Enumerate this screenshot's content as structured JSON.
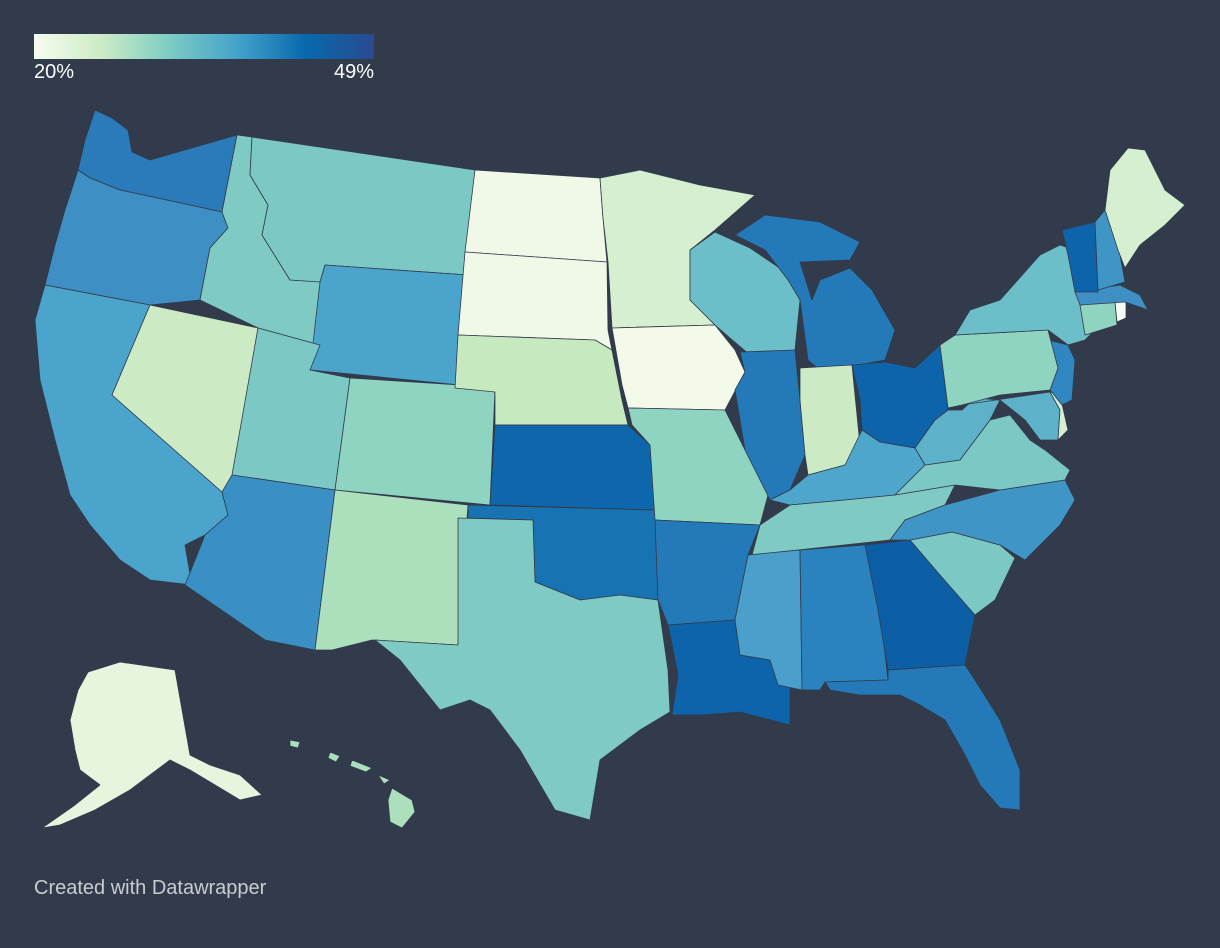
{
  "legend": {
    "min_label": "20%",
    "max_label": "49%",
    "gradient": [
      "#f7fcf0",
      "#ccebc5",
      "#7bccc4",
      "#43a2ca",
      "#0868ac",
      "#2a4a8f"
    ]
  },
  "footer": {
    "credit": "Created with Datawrapper"
  },
  "chart_data": {
    "type": "choropleth",
    "unit": "%",
    "range": [
      20,
      49
    ],
    "states": [
      {
        "name": "Washington",
        "color": "#2b7bba"
      },
      {
        "name": "Oregon",
        "color": "#3d8fc4"
      },
      {
        "name": "California",
        "color": "#4aa4cc"
      },
      {
        "name": "Nevada",
        "color": "#ccebc5"
      },
      {
        "name": "Idaho",
        "color": "#7fcbc3"
      },
      {
        "name": "Montana",
        "color": "#7bc8c5"
      },
      {
        "name": "Wyoming",
        "color": "#4aa4cc"
      },
      {
        "name": "Utah",
        "color": "#7bc8c5"
      },
      {
        "name": "Arizona",
        "color": "#3a8fc4"
      },
      {
        "name": "Colorado",
        "color": "#8fd3c1"
      },
      {
        "name": "New Mexico",
        "color": "#ace0bc"
      },
      {
        "name": "North Dakota",
        "color": "#f0f9e8"
      },
      {
        "name": "South Dakota",
        "color": "#f0f9e8"
      },
      {
        "name": "Nebraska",
        "color": "#c7e9c0"
      },
      {
        "name": "Kansas",
        "color": "#0e67ad"
      },
      {
        "name": "Oklahoma",
        "color": "#1873b3"
      },
      {
        "name": "Texas",
        "color": "#7fcbc3"
      },
      {
        "name": "Minnesota",
        "color": "#d6efd0"
      },
      {
        "name": "Iowa",
        "color": "#f3fae9"
      },
      {
        "name": "Missouri",
        "color": "#8fd3c1"
      },
      {
        "name": "Arkansas",
        "color": "#2479b8"
      },
      {
        "name": "Louisiana",
        "color": "#0e64aa"
      },
      {
        "name": "Wisconsin",
        "color": "#6cbfc8"
      },
      {
        "name": "Illinois",
        "color": "#2479b8"
      },
      {
        "name": "Michigan",
        "color": "#2479b8"
      },
      {
        "name": "Indiana",
        "color": "#ccebc5"
      },
      {
        "name": "Ohio",
        "color": "#0e64aa"
      },
      {
        "name": "Kentucky",
        "color": "#4ea6cc"
      },
      {
        "name": "Tennessee",
        "color": "#7fcbc3"
      },
      {
        "name": "Mississippi",
        "color": "#4aa0cb"
      },
      {
        "name": "Alabama",
        "color": "#2a83bf"
      },
      {
        "name": "Georgia",
        "color": "#0c5ea5"
      },
      {
        "name": "Florida",
        "color": "#2479b8"
      },
      {
        "name": "South Carolina",
        "color": "#7bc8c5"
      },
      {
        "name": "North Carolina",
        "color": "#3f96c6"
      },
      {
        "name": "Virginia",
        "color": "#7bc8c5"
      },
      {
        "name": "West Virginia",
        "color": "#5db2ca"
      },
      {
        "name": "Maryland",
        "color": "#5db2ca"
      },
      {
        "name": "Delaware",
        "color": "#d6efd0"
      },
      {
        "name": "New Jersey",
        "color": "#2f86c0"
      },
      {
        "name": "Pennsylvania",
        "color": "#8fd3c1"
      },
      {
        "name": "New York",
        "color": "#6cbfc8"
      },
      {
        "name": "Connecticut",
        "color": "#8fd3c1"
      },
      {
        "name": "Rhode Island",
        "color": "#f7fcf0"
      },
      {
        "name": "Massachusetts",
        "color": "#3d8fc4"
      },
      {
        "name": "Vermont",
        "color": "#0e64aa"
      },
      {
        "name": "New Hampshire",
        "color": "#3f96c6"
      },
      {
        "name": "Maine",
        "color": "#d6efd0"
      },
      {
        "name": "Alaska",
        "color": "#e6f5de"
      },
      {
        "name": "Hawaii",
        "color": "#ace0bc"
      }
    ]
  }
}
